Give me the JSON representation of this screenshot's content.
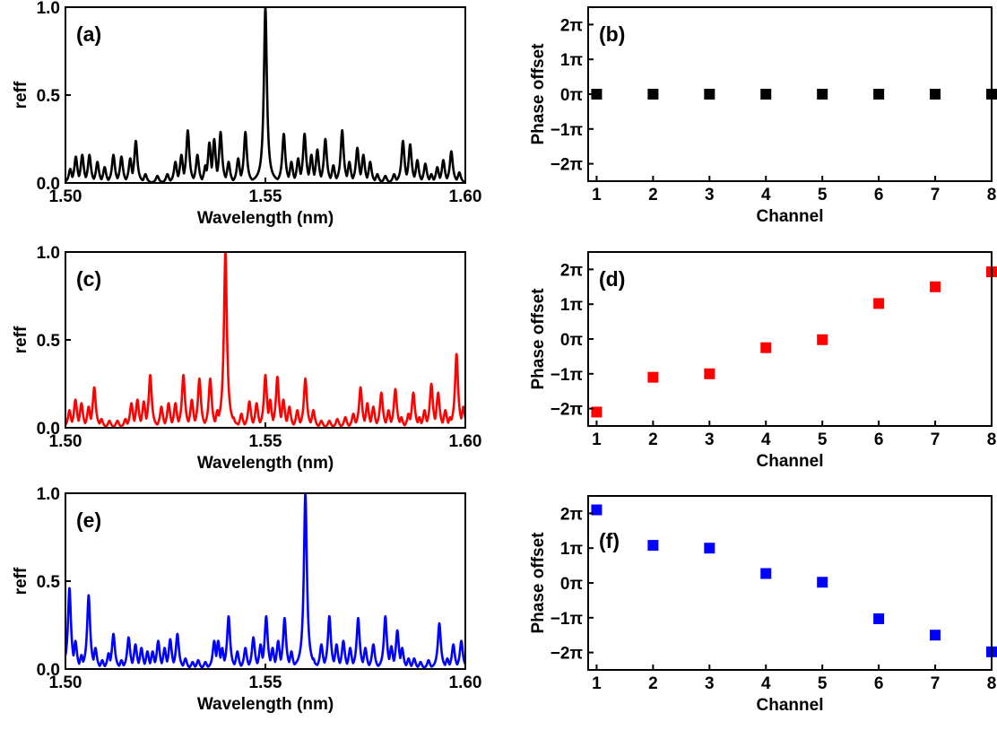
{
  "chart_data": [
    {
      "id": "a",
      "panel_label": "(a)",
      "type": "line",
      "title": "",
      "xlabel": "Wavelength (nm)",
      "ylabel": "reff",
      "xlim": [
        1.5,
        1.6
      ],
      "ylim": [
        0,
        1.0
      ],
      "xticks": [
        1.5,
        1.55,
        1.6
      ],
      "xtick_labels": [
        "1.50",
        "1.55",
        "1.60"
      ],
      "yticks": [
        0,
        0.5,
        1.0
      ],
      "ytick_labels": [
        "0.0",
        "0.5",
        "1.0"
      ],
      "grid": false,
      "series": [
        {
          "color": "#000000",
          "peaks": [
            [
              1.5012,
              0.08
            ],
            [
              1.5026,
              0.15
            ],
            [
              1.5042,
              0.16
            ],
            [
              1.506,
              0.16
            ],
            [
              1.508,
              0.12
            ],
            [
              1.5098,
              0.09
            ],
            [
              1.512,
              0.16
            ],
            [
              1.514,
              0.15
            ],
            [
              1.5162,
              0.14
            ],
            [
              1.5176,
              0.24
            ],
            [
              1.52,
              0.05
            ],
            [
              1.523,
              0.04
            ],
            [
              1.5255,
              0.05
            ],
            [
              1.5275,
              0.12
            ],
            [
              1.529,
              0.16
            ],
            [
              1.5306,
              0.3
            ],
            [
              1.533,
              0.16
            ],
            [
              1.535,
              0.1
            ],
            [
              1.536,
              0.23
            ],
            [
              1.5372,
              0.25
            ],
            [
              1.5388,
              0.29
            ],
            [
              1.5408,
              0.12
            ],
            [
              1.5432,
              0.14
            ],
            [
              1.545,
              0.29
            ],
            [
              1.5475,
              0.03
            ],
            [
              1.55,
              1.0
            ],
            [
              1.5525,
              0.03
            ],
            [
              1.5546,
              0.28
            ],
            [
              1.5565,
              0.12
            ],
            [
              1.5582,
              0.14
            ],
            [
              1.5598,
              0.28
            ],
            [
              1.5615,
              0.16
            ],
            [
              1.563,
              0.19
            ],
            [
              1.565,
              0.25
            ],
            [
              1.567,
              0.1
            ],
            [
              1.5692,
              0.3
            ],
            [
              1.571,
              0.12
            ],
            [
              1.573,
              0.2
            ],
            [
              1.5745,
              0.16
            ],
            [
              1.5762,
              0.12
            ],
            [
              1.578,
              0.05
            ],
            [
              1.58,
              0.04
            ],
            [
              1.5822,
              0.05
            ],
            [
              1.5844,
              0.24
            ],
            [
              1.5862,
              0.22
            ],
            [
              1.588,
              0.13
            ],
            [
              1.59,
              0.11
            ],
            [
              1.5915,
              0.05
            ],
            [
              1.593,
              0.09
            ],
            [
              1.5945,
              0.13
            ],
            [
              1.5965,
              0.18
            ],
            [
              1.5985,
              0.06
            ]
          ]
        }
      ]
    },
    {
      "id": "b",
      "panel_label": "(b)",
      "type": "scatter",
      "title": "",
      "xlabel": "Channel",
      "ylabel": "Phase offset",
      "xlim": [
        0.85,
        8.0
      ],
      "ylim": [
        -2.5,
        2.5
      ],
      "xticks": [
        1,
        2,
        3,
        4,
        5,
        6,
        7,
        8
      ],
      "xtick_labels": [
        "1",
        "2",
        "3",
        "4",
        "5",
        "6",
        "7",
        "8"
      ],
      "yticks": [
        -2,
        -1,
        0,
        1,
        2
      ],
      "ytick_labels": [
        "−2π",
        "−1π",
        "0π",
        "1π",
        "2π"
      ],
      "grid": false,
      "series": [
        {
          "color": "#000000",
          "x": [
            1,
            2,
            3,
            4,
            5,
            6,
            7,
            8
          ],
          "y": [
            0,
            0,
            0,
            0,
            0,
            0,
            0,
            0
          ]
        }
      ]
    },
    {
      "id": "c",
      "panel_label": "(c)",
      "type": "line",
      "title": "",
      "xlabel": "Wavelength (nm)",
      "ylabel": "reff",
      "xlim": [
        1.5,
        1.6
      ],
      "ylim": [
        0,
        1.0
      ],
      "xticks": [
        1.5,
        1.55,
        1.6
      ],
      "xtick_labels": [
        "1.50",
        "1.55",
        "1.60"
      ],
      "yticks": [
        0,
        0.5,
        1.0
      ],
      "ytick_labels": [
        "0.0",
        "0.5",
        "1.0"
      ],
      "grid": false,
      "series": [
        {
          "color": "#ff0000",
          "peaks": [
            [
              1.501,
              0.1
            ],
            [
              1.5025,
              0.16
            ],
            [
              1.504,
              0.14
            ],
            [
              1.5058,
              0.12
            ],
            [
              1.5072,
              0.23
            ],
            [
              1.509,
              0.05
            ],
            [
              1.511,
              0.04
            ],
            [
              1.513,
              0.04
            ],
            [
              1.515,
              0.05
            ],
            [
              1.5165,
              0.14
            ],
            [
              1.518,
              0.16
            ],
            [
              1.5196,
              0.15
            ],
            [
              1.5212,
              0.3
            ],
            [
              1.524,
              0.12
            ],
            [
              1.5258,
              0.14
            ],
            [
              1.5275,
              0.14
            ],
            [
              1.5295,
              0.3
            ],
            [
              1.5316,
              0.16
            ],
            [
              1.5335,
              0.28
            ],
            [
              1.5362,
              0.28
            ],
            [
              1.538,
              0.1
            ],
            [
              1.54,
              1.0
            ],
            [
              1.542,
              0.06
            ],
            [
              1.544,
              0.08
            ],
            [
              1.546,
              0.15
            ],
            [
              1.5478,
              0.14
            ],
            [
              1.55,
              0.3
            ],
            [
              1.5512,
              0.16
            ],
            [
              1.553,
              0.29
            ],
            [
              1.5545,
              0.16
            ],
            [
              1.556,
              0.12
            ],
            [
              1.558,
              0.1
            ],
            [
              1.56,
              0.28
            ],
            [
              1.562,
              0.1
            ],
            [
              1.564,
              0.04
            ],
            [
              1.566,
              0.04
            ],
            [
              1.568,
              0.05
            ],
            [
              1.57,
              0.06
            ],
            [
              1.572,
              0.08
            ],
            [
              1.5738,
              0.23
            ],
            [
              1.5755,
              0.14
            ],
            [
              1.577,
              0.12
            ],
            [
              1.579,
              0.2
            ],
            [
              1.5808,
              0.1
            ],
            [
              1.5825,
              0.22
            ],
            [
              1.584,
              0.06
            ],
            [
              1.5858,
              0.08
            ],
            [
              1.587,
              0.2
            ],
            [
              1.5885,
              0.06
            ],
            [
              1.5898,
              0.1
            ],
            [
              1.5915,
              0.25
            ],
            [
              1.5932,
              0.2
            ],
            [
              1.595,
              0.1
            ],
            [
              1.5962,
              0.06
            ],
            [
              1.5978,
              0.42
            ],
            [
              1.5995,
              0.12
            ]
          ]
        }
      ]
    },
    {
      "id": "d",
      "panel_label": "(d)",
      "type": "scatter",
      "title": "",
      "xlabel": "Channel",
      "ylabel": "Phase offset",
      "xlim": [
        0.85,
        8.0
      ],
      "ylim": [
        -2.5,
        2.5
      ],
      "xticks": [
        1,
        2,
        3,
        4,
        5,
        6,
        7,
        8
      ],
      "xtick_labels": [
        "1",
        "2",
        "3",
        "4",
        "5",
        "6",
        "7",
        "8"
      ],
      "yticks": [
        -2,
        -1,
        0,
        1,
        2
      ],
      "ytick_labels": [
        "−2π",
        "−1π",
        "0π",
        "1π",
        "2π"
      ],
      "grid": false,
      "series": [
        {
          "color": "#ff0000",
          "x": [
            1,
            2,
            3,
            4,
            5,
            6,
            7,
            8
          ],
          "y": [
            -2.1,
            -1.1,
            -1.0,
            -0.25,
            -0.02,
            1.02,
            1.5,
            1.93
          ]
        }
      ]
    },
    {
      "id": "e",
      "panel_label": "(e)",
      "type": "line",
      "title": "",
      "xlabel": "Wavelength (nm)",
      "ylabel": "reff",
      "xlim": [
        1.5,
        1.6
      ],
      "ylim": [
        0,
        1.0
      ],
      "xticks": [
        1.5,
        1.55,
        1.6
      ],
      "xtick_labels": [
        "1.50",
        "1.55",
        "1.60"
      ],
      "yticks": [
        0,
        0.5,
        1.0
      ],
      "ytick_labels": [
        "0.0",
        "0.5",
        "1.0"
      ],
      "grid": false,
      "series": [
        {
          "color": "#0000ff",
          "peaks": [
            [
              1.501,
              0.46
            ],
            [
              1.5025,
              0.16
            ],
            [
              1.504,
              0.08
            ],
            [
              1.5058,
              0.42
            ],
            [
              1.5075,
              0.12
            ],
            [
              1.5092,
              0.05
            ],
            [
              1.5108,
              0.09
            ],
            [
              1.512,
              0.2
            ],
            [
              1.514,
              0.05
            ],
            [
              1.5158,
              0.18
            ],
            [
              1.5175,
              0.14
            ],
            [
              1.519,
              0.12
            ],
            [
              1.5205,
              0.1
            ],
            [
              1.5218,
              0.1
            ],
            [
              1.5232,
              0.16
            ],
            [
              1.5248,
              0.12
            ],
            [
              1.5262,
              0.17
            ],
            [
              1.528,
              0.2
            ],
            [
              1.53,
              0.06
            ],
            [
              1.5318,
              0.04
            ],
            [
              1.5332,
              0.05
            ],
            [
              1.535,
              0.04
            ],
            [
              1.5372,
              0.16
            ],
            [
              1.5382,
              0.16
            ],
            [
              1.5392,
              0.12
            ],
            [
              1.5408,
              0.3
            ],
            [
              1.543,
              0.1
            ],
            [
              1.545,
              0.12
            ],
            [
              1.547,
              0.18
            ],
            [
              1.5488,
              0.14
            ],
            [
              1.5502,
              0.3
            ],
            [
              1.5518,
              0.12
            ],
            [
              1.5532,
              0.16
            ],
            [
              1.5548,
              0.29
            ],
            [
              1.5565,
              0.1
            ],
            [
              1.56,
              1.0
            ],
            [
              1.562,
              0.06
            ],
            [
              1.564,
              0.14
            ],
            [
              1.566,
              0.3
            ],
            [
              1.5678,
              0.14
            ],
            [
              1.5695,
              0.16
            ],
            [
              1.5712,
              0.12
            ],
            [
              1.5732,
              0.29
            ],
            [
              1.575,
              0.12
            ],
            [
              1.577,
              0.14
            ],
            [
              1.58,
              0.3
            ],
            [
              1.5815,
              0.13
            ],
            [
              1.583,
              0.22
            ],
            [
              1.5842,
              0.12
            ],
            [
              1.5858,
              0.06
            ],
            [
              1.5872,
              0.06
            ],
            [
              1.5888,
              0.04
            ],
            [
              1.5908,
              0.05
            ],
            [
              1.5935,
              0.26
            ],
            [
              1.5955,
              0.06
            ],
            [
              1.597,
              0.14
            ],
            [
              1.599,
              0.16
            ]
          ]
        }
      ]
    },
    {
      "id": "f",
      "panel_label": "(f)",
      "type": "scatter",
      "title": "",
      "xlabel": "Channel",
      "ylabel": "Phase offset",
      "xlim": [
        0.85,
        8.0
      ],
      "ylim": [
        -2.5,
        2.5
      ],
      "xticks": [
        1,
        2,
        3,
        4,
        5,
        6,
        7,
        8
      ],
      "xtick_labels": [
        "1",
        "2",
        "3",
        "4",
        "5",
        "6",
        "7",
        "8"
      ],
      "yticks": [
        -2,
        -1,
        0,
        1,
        2
      ],
      "ytick_labels": [
        "−2π",
        "−1π",
        "0π",
        "1π",
        "2π"
      ],
      "grid": false,
      "series": [
        {
          "color": "#0000ff",
          "x": [
            1,
            2,
            3,
            4,
            5,
            6,
            7,
            8
          ],
          "y": [
            2.1,
            1.08,
            1.0,
            0.27,
            0.02,
            -1.03,
            -1.5,
            -1.98
          ]
        }
      ]
    }
  ]
}
